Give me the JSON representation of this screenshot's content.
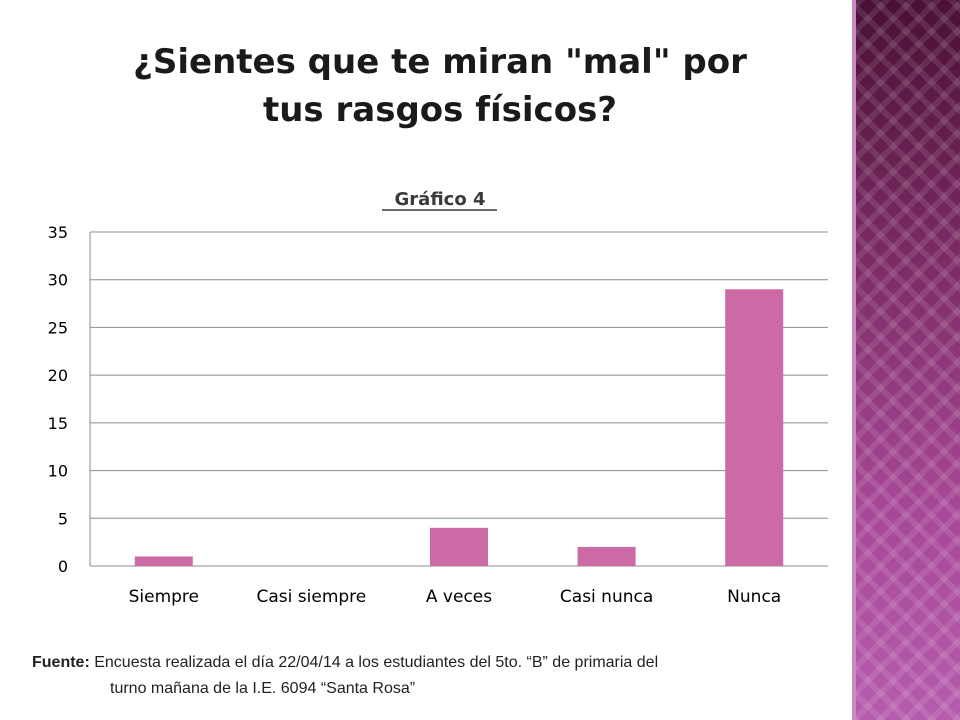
{
  "slide": {
    "title_line1": "¿Sientes que te miran \"mal\" por",
    "title_line2": "tus rasgos físicos?"
  },
  "source": {
    "label": "Fuente:",
    "text_line1": " Encuesta realizada el día 22/04/14 a los estudiantes del 5to. “B”  de primaria del",
    "text_line2": "turno mañana de la I.E. 6094 “Santa Rosa”"
  },
  "colors": {
    "bar": "#cc6aa6",
    "grid": "#8c8c8c",
    "panel_dark": "#4a1036",
    "panel_light": "#b65cad"
  },
  "chart_data": {
    "type": "bar",
    "title": "Gráfico 4",
    "categories": [
      "Siempre",
      "Casi siempre",
      "A veces",
      "Casi nunca",
      "Nunca"
    ],
    "values": [
      1,
      0,
      4,
      2,
      29
    ],
    "ylim": [
      0,
      35
    ],
    "yticks": [
      0,
      5,
      10,
      15,
      20,
      25,
      30,
      35
    ],
    "xlabel": "",
    "ylabel": "",
    "grid": true,
    "legend": "none"
  }
}
